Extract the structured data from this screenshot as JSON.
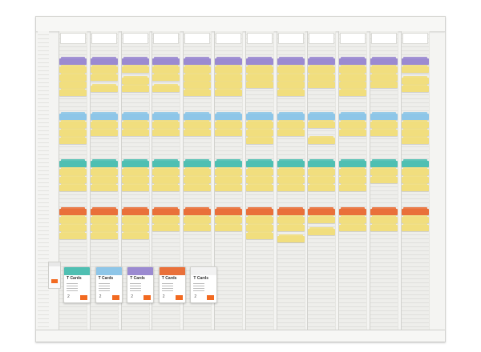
{
  "colors": {
    "purple": "#9b8ad1",
    "blue": "#8ec6e8",
    "teal": "#4fbfb2",
    "orange": "#e9703a",
    "yellow": "#f1de7e",
    "white": "#ffffff",
    "brand_orange": "#f26a21"
  },
  "board": {
    "column_count": 12,
    "columns": [
      {
        "cards": [
          {
            "row": 6,
            "color": "purple"
          },
          {
            "row": 8,
            "color": "yellow"
          },
          {
            "row": 10,
            "color": "yellow"
          },
          {
            "row": 12,
            "color": "yellow"
          },
          {
            "row": 14,
            "color": "yellow"
          },
          {
            "row": 20,
            "color": "blue"
          },
          {
            "row": 22,
            "color": "yellow"
          },
          {
            "row": 24,
            "color": "yellow"
          },
          {
            "row": 26,
            "color": "yellow"
          },
          {
            "row": 32,
            "color": "teal"
          },
          {
            "row": 34,
            "color": "yellow"
          },
          {
            "row": 36,
            "color": "yellow"
          },
          {
            "row": 38,
            "color": "yellow"
          },
          {
            "row": 44,
            "color": "orange"
          },
          {
            "row": 46,
            "color": "yellow"
          },
          {
            "row": 48,
            "color": "yellow"
          },
          {
            "row": 50,
            "color": "yellow"
          }
        ]
      },
      {
        "cards": [
          {
            "row": 6,
            "color": "purple"
          },
          {
            "row": 8,
            "color": "yellow"
          },
          {
            "row": 10,
            "color": "yellow"
          },
          {
            "row": 13,
            "color": "yellow"
          },
          {
            "row": 20,
            "color": "blue"
          },
          {
            "row": 22,
            "color": "yellow"
          },
          {
            "row": 24,
            "color": "yellow"
          },
          {
            "row": 32,
            "color": "teal"
          },
          {
            "row": 34,
            "color": "yellow"
          },
          {
            "row": 36,
            "color": "yellow"
          },
          {
            "row": 38,
            "color": "yellow"
          },
          {
            "row": 44,
            "color": "orange"
          },
          {
            "row": 46,
            "color": "yellow"
          },
          {
            "row": 48,
            "color": "yellow"
          },
          {
            "row": 50,
            "color": "yellow"
          }
        ]
      },
      {
        "cards": [
          {
            "row": 6,
            "color": "purple"
          },
          {
            "row": 8,
            "color": "yellow"
          },
          {
            "row": 11,
            "color": "yellow"
          },
          {
            "row": 13,
            "color": "yellow"
          },
          {
            "row": 20,
            "color": "blue"
          },
          {
            "row": 22,
            "color": "yellow"
          },
          {
            "row": 24,
            "color": "yellow"
          },
          {
            "row": 32,
            "color": "teal"
          },
          {
            "row": 34,
            "color": "yellow"
          },
          {
            "row": 36,
            "color": "yellow"
          },
          {
            "row": 38,
            "color": "yellow"
          },
          {
            "row": 44,
            "color": "orange"
          },
          {
            "row": 46,
            "color": "yellow"
          },
          {
            "row": 48,
            "color": "yellow"
          },
          {
            "row": 50,
            "color": "yellow"
          }
        ]
      },
      {
        "cards": [
          {
            "row": 6,
            "color": "purple"
          },
          {
            "row": 8,
            "color": "yellow"
          },
          {
            "row": 10,
            "color": "yellow"
          },
          {
            "row": 13,
            "color": "yellow"
          },
          {
            "row": 20,
            "color": "blue"
          },
          {
            "row": 22,
            "color": "yellow"
          },
          {
            "row": 24,
            "color": "yellow"
          },
          {
            "row": 32,
            "color": "teal"
          },
          {
            "row": 34,
            "color": "yellow"
          },
          {
            "row": 36,
            "color": "yellow"
          },
          {
            "row": 38,
            "color": "yellow"
          },
          {
            "row": 44,
            "color": "orange"
          },
          {
            "row": 46,
            "color": "yellow"
          },
          {
            "row": 48,
            "color": "yellow"
          }
        ]
      },
      {
        "cards": [
          {
            "row": 6,
            "color": "purple"
          },
          {
            "row": 8,
            "color": "yellow"
          },
          {
            "row": 10,
            "color": "yellow"
          },
          {
            "row": 12,
            "color": "yellow"
          },
          {
            "row": 14,
            "color": "yellow"
          },
          {
            "row": 20,
            "color": "blue"
          },
          {
            "row": 22,
            "color": "yellow"
          },
          {
            "row": 24,
            "color": "yellow"
          },
          {
            "row": 32,
            "color": "teal"
          },
          {
            "row": 34,
            "color": "yellow"
          },
          {
            "row": 36,
            "color": "yellow"
          },
          {
            "row": 38,
            "color": "yellow"
          },
          {
            "row": 44,
            "color": "orange"
          },
          {
            "row": 46,
            "color": "yellow"
          },
          {
            "row": 48,
            "color": "yellow"
          }
        ]
      },
      {
        "cards": [
          {
            "row": 6,
            "color": "purple"
          },
          {
            "row": 8,
            "color": "yellow"
          },
          {
            "row": 10,
            "color": "yellow"
          },
          {
            "row": 12,
            "color": "yellow"
          },
          {
            "row": 14,
            "color": "yellow"
          },
          {
            "row": 20,
            "color": "blue"
          },
          {
            "row": 22,
            "color": "yellow"
          },
          {
            "row": 24,
            "color": "yellow"
          },
          {
            "row": 32,
            "color": "teal"
          },
          {
            "row": 34,
            "color": "yellow"
          },
          {
            "row": 36,
            "color": "yellow"
          },
          {
            "row": 38,
            "color": "yellow"
          },
          {
            "row": 44,
            "color": "orange"
          },
          {
            "row": 46,
            "color": "yellow"
          },
          {
            "row": 48,
            "color": "yellow"
          }
        ]
      },
      {
        "cards": [
          {
            "row": 6,
            "color": "purple"
          },
          {
            "row": 8,
            "color": "yellow"
          },
          {
            "row": 10,
            "color": "yellow"
          },
          {
            "row": 12,
            "color": "yellow"
          },
          {
            "row": 20,
            "color": "blue"
          },
          {
            "row": 22,
            "color": "yellow"
          },
          {
            "row": 24,
            "color": "yellow"
          },
          {
            "row": 26,
            "color": "yellow"
          },
          {
            "row": 32,
            "color": "teal"
          },
          {
            "row": 34,
            "color": "yellow"
          },
          {
            "row": 36,
            "color": "yellow"
          },
          {
            "row": 38,
            "color": "yellow"
          },
          {
            "row": 44,
            "color": "orange"
          },
          {
            "row": 46,
            "color": "yellow"
          },
          {
            "row": 48,
            "color": "yellow"
          },
          {
            "row": 50,
            "color": "yellow"
          }
        ]
      },
      {
        "cards": [
          {
            "row": 6,
            "color": "purple"
          },
          {
            "row": 8,
            "color": "yellow"
          },
          {
            "row": 10,
            "color": "yellow"
          },
          {
            "row": 12,
            "color": "yellow"
          },
          {
            "row": 14,
            "color": "yellow"
          },
          {
            "row": 20,
            "color": "blue"
          },
          {
            "row": 22,
            "color": "yellow"
          },
          {
            "row": 24,
            "color": "yellow"
          },
          {
            "row": 32,
            "color": "teal"
          },
          {
            "row": 34,
            "color": "yellow"
          },
          {
            "row": 36,
            "color": "yellow"
          },
          {
            "row": 38,
            "color": "yellow"
          },
          {
            "row": 44,
            "color": "orange"
          },
          {
            "row": 46,
            "color": "yellow"
          },
          {
            "row": 48,
            "color": "yellow"
          },
          {
            "row": 51,
            "color": "yellow"
          }
        ]
      },
      {
        "cards": [
          {
            "row": 6,
            "color": "purple"
          },
          {
            "row": 8,
            "color": "yellow"
          },
          {
            "row": 10,
            "color": "yellow"
          },
          {
            "row": 12,
            "color": "yellow"
          },
          {
            "row": 20,
            "color": "blue"
          },
          {
            "row": 22,
            "color": "yellow"
          },
          {
            "row": 26,
            "color": "yellow"
          },
          {
            "row": 32,
            "color": "teal"
          },
          {
            "row": 34,
            "color": "yellow"
          },
          {
            "row": 36,
            "color": "yellow"
          },
          {
            "row": 38,
            "color": "yellow"
          },
          {
            "row": 44,
            "color": "orange"
          },
          {
            "row": 46,
            "color": "yellow"
          },
          {
            "row": 49,
            "color": "yellow"
          }
        ]
      },
      {
        "cards": [
          {
            "row": 6,
            "color": "purple"
          },
          {
            "row": 8,
            "color": "yellow"
          },
          {
            "row": 10,
            "color": "yellow"
          },
          {
            "row": 12,
            "color": "yellow"
          },
          {
            "row": 14,
            "color": "yellow"
          },
          {
            "row": 20,
            "color": "blue"
          },
          {
            "row": 22,
            "color": "yellow"
          },
          {
            "row": 24,
            "color": "yellow"
          },
          {
            "row": 32,
            "color": "teal"
          },
          {
            "row": 34,
            "color": "yellow"
          },
          {
            "row": 36,
            "color": "yellow"
          },
          {
            "row": 38,
            "color": "yellow"
          },
          {
            "row": 44,
            "color": "orange"
          },
          {
            "row": 46,
            "color": "yellow"
          },
          {
            "row": 48,
            "color": "yellow"
          }
        ]
      },
      {
        "cards": [
          {
            "row": 6,
            "color": "purple"
          },
          {
            "row": 8,
            "color": "yellow"
          },
          {
            "row": 10,
            "color": "yellow"
          },
          {
            "row": 12,
            "color": "yellow"
          },
          {
            "row": 20,
            "color": "blue"
          },
          {
            "row": 22,
            "color": "yellow"
          },
          {
            "row": 24,
            "color": "yellow"
          },
          {
            "row": 32,
            "color": "teal"
          },
          {
            "row": 34,
            "color": "yellow"
          },
          {
            "row": 36,
            "color": "yellow"
          },
          {
            "row": 44,
            "color": "orange"
          },
          {
            "row": 46,
            "color": "yellow"
          },
          {
            "row": 48,
            "color": "yellow"
          }
        ]
      },
      {
        "cards": [
          {
            "row": 6,
            "color": "purple"
          },
          {
            "row": 8,
            "color": "yellow"
          },
          {
            "row": 11,
            "color": "yellow"
          },
          {
            "row": 13,
            "color": "yellow"
          },
          {
            "row": 20,
            "color": "blue"
          },
          {
            "row": 22,
            "color": "yellow"
          },
          {
            "row": 24,
            "color": "yellow"
          },
          {
            "row": 26,
            "color": "yellow"
          },
          {
            "row": 32,
            "color": "teal"
          },
          {
            "row": 34,
            "color": "yellow"
          },
          {
            "row": 36,
            "color": "yellow"
          },
          {
            "row": 38,
            "color": "yellow"
          },
          {
            "row": 44,
            "color": "orange"
          },
          {
            "row": 46,
            "color": "yellow"
          },
          {
            "row": 48,
            "color": "yellow"
          }
        ]
      }
    ]
  },
  "card_packs": [
    {
      "title": "T Cards",
      "number": "2",
      "color": "teal",
      "logo": "nobo-logo-icon"
    },
    {
      "title": "T Cards",
      "number": "2",
      "color": "blue",
      "logo": "nobo-logo-icon"
    },
    {
      "title": "T Cards",
      "number": "2",
      "color": "purple",
      "logo": "nobo-logo-icon"
    },
    {
      "title": "T Cards",
      "number": "2",
      "color": "orange",
      "logo": "nobo-logo-icon"
    },
    {
      "title": "T Cards",
      "number": "2",
      "color": "white",
      "logo": "nobo-logo-icon"
    }
  ]
}
